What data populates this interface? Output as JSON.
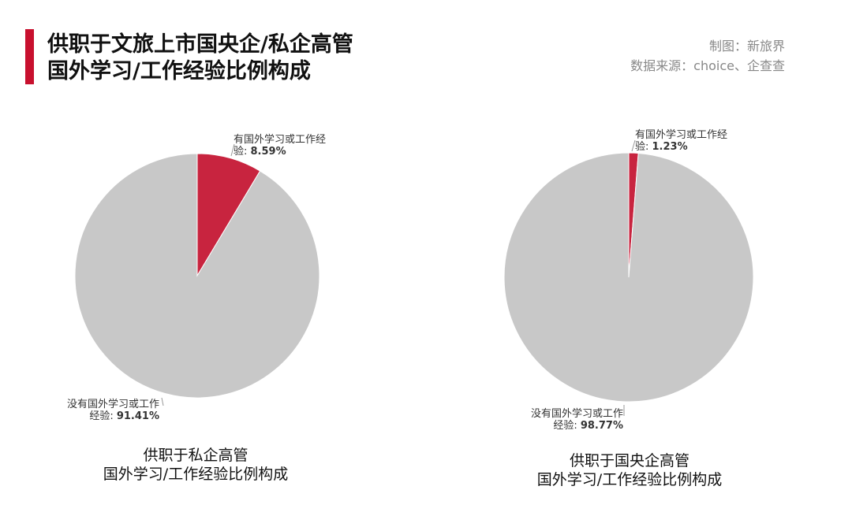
{
  "header": {
    "title_line1": "供职于文旅上市国央企/私企高管",
    "title_line2": "国外学习/工作经验比例构成",
    "credit_line1": "制图：新旅界",
    "credit_line2": "数据来源：choice、企查查",
    "accent_color": "#c8102e"
  },
  "chart_data": [
    {
      "type": "pie",
      "caption_line1": "供职于私企高管",
      "caption_line2": "国外学习/工作经验比例构成",
      "slices": [
        {
          "label_line1": "有国外学习或工作经",
          "label_line2": "验",
          "value": 8.59,
          "value_text": "8.59%",
          "color": "#c8243f"
        },
        {
          "label_line1": "没有国外学习或工作",
          "label_line2": "经验",
          "value": 91.41,
          "value_text": "91.41%",
          "color": "#c8c8c8"
        }
      ]
    },
    {
      "type": "pie",
      "caption_line1": "供职于国央企高管",
      "caption_line2": "国外学习/工作经验比例构成",
      "slices": [
        {
          "label_line1": "有国外学习或工作经",
          "label_line2": "验",
          "value": 1.23,
          "value_text": "1.23%",
          "color": "#c8243f"
        },
        {
          "label_line1": "没有国外学习或工作",
          "label_line2": "经验",
          "value": 98.77,
          "value_text": "98.77%",
          "color": "#c8c8c8"
        }
      ]
    }
  ]
}
